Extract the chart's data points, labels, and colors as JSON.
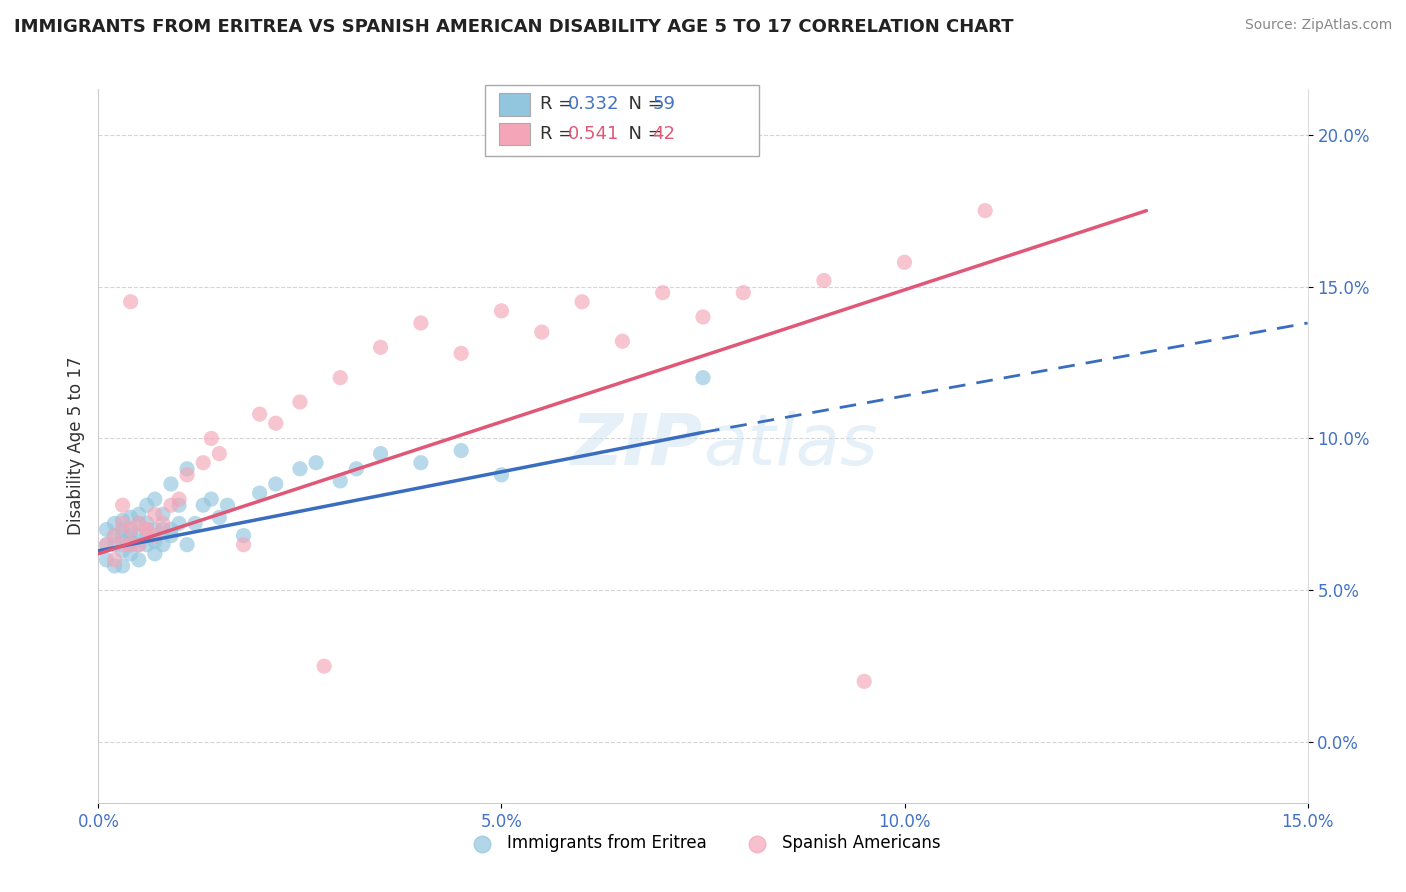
{
  "title": "IMMIGRANTS FROM ERITREA VS SPANISH AMERICAN DISABILITY AGE 5 TO 17 CORRELATION CHART",
  "source": "Source: ZipAtlas.com",
  "ylabel": "Disability Age 5 to 17",
  "xlim": [
    0.0,
    0.15
  ],
  "ylim": [
    -0.02,
    0.215
  ],
  "xticks": [
    0.0,
    0.05,
    0.1,
    0.15
  ],
  "xtick_labels": [
    "0.0%",
    "5.0%",
    "10.0%",
    "15.0%"
  ],
  "yticks": [
    0.0,
    0.05,
    0.1,
    0.15,
    0.2
  ],
  "ytick_labels": [
    "0.0%",
    "5.0%",
    "10.0%",
    "15.0%",
    "20.0%"
  ],
  "blue_R": 0.332,
  "blue_N": 59,
  "pink_R": 0.541,
  "pink_N": 42,
  "blue_color": "#92c5de",
  "pink_color": "#f4a6b8",
  "blue_line_color": "#3a6dbf",
  "pink_line_color": "#e05878",
  "watermark": "ZIPatlas",
  "legend_labels": [
    "Immigrants from Eritrea",
    "Spanish Americans"
  ],
  "blue_scatter_x": [
    0.001,
    0.001,
    0.001,
    0.002,
    0.002,
    0.002,
    0.002,
    0.003,
    0.003,
    0.003,
    0.003,
    0.003,
    0.003,
    0.004,
    0.004,
    0.004,
    0.004,
    0.004,
    0.004,
    0.005,
    0.005,
    0.005,
    0.005,
    0.005,
    0.006,
    0.006,
    0.006,
    0.006,
    0.007,
    0.007,
    0.007,
    0.007,
    0.008,
    0.008,
    0.008,
    0.009,
    0.009,
    0.009,
    0.01,
    0.01,
    0.011,
    0.011,
    0.012,
    0.013,
    0.014,
    0.015,
    0.016,
    0.018,
    0.02,
    0.022,
    0.025,
    0.027,
    0.03,
    0.032,
    0.035,
    0.04,
    0.045,
    0.05,
    0.075
  ],
  "blue_scatter_y": [
    0.065,
    0.07,
    0.06,
    0.068,
    0.072,
    0.065,
    0.058,
    0.07,
    0.066,
    0.063,
    0.068,
    0.073,
    0.058,
    0.068,
    0.074,
    0.062,
    0.066,
    0.07,
    0.065,
    0.068,
    0.072,
    0.065,
    0.06,
    0.075,
    0.068,
    0.072,
    0.065,
    0.078,
    0.07,
    0.066,
    0.062,
    0.08,
    0.07,
    0.075,
    0.065,
    0.07,
    0.068,
    0.085,
    0.072,
    0.078,
    0.065,
    0.09,
    0.072,
    0.078,
    0.08,
    0.074,
    0.078,
    0.068,
    0.082,
    0.085,
    0.09,
    0.092,
    0.086,
    0.09,
    0.095,
    0.092,
    0.096,
    0.088,
    0.12
  ],
  "pink_scatter_x": [
    0.001,
    0.002,
    0.002,
    0.003,
    0.003,
    0.003,
    0.004,
    0.004,
    0.004,
    0.005,
    0.005,
    0.006,
    0.006,
    0.007,
    0.007,
    0.008,
    0.009,
    0.01,
    0.011,
    0.013,
    0.014,
    0.015,
    0.018,
    0.02,
    0.022,
    0.025,
    0.028,
    0.03,
    0.035,
    0.04,
    0.045,
    0.05,
    0.055,
    0.06,
    0.065,
    0.07,
    0.075,
    0.08,
    0.09,
    0.095,
    0.1,
    0.11
  ],
  "pink_scatter_y": [
    0.065,
    0.068,
    0.06,
    0.065,
    0.072,
    0.078,
    0.065,
    0.07,
    0.145,
    0.065,
    0.072,
    0.07,
    0.07,
    0.068,
    0.075,
    0.072,
    0.078,
    0.08,
    0.088,
    0.092,
    0.1,
    0.095,
    0.065,
    0.108,
    0.105,
    0.112,
    0.025,
    0.12,
    0.13,
    0.138,
    0.128,
    0.142,
    0.135,
    0.145,
    0.132,
    0.148,
    0.14,
    0.148,
    0.152,
    0.02,
    0.158,
    0.175
  ],
  "blue_line_x0": 0.0,
  "blue_line_x_solid_end": 0.075,
  "blue_line_x1": 0.15,
  "blue_line_y_at_0": 0.063,
  "blue_line_y_at_075": 0.102,
  "blue_line_y_at_15": 0.138,
  "pink_line_x0": 0.0,
  "pink_line_x1": 0.13,
  "pink_line_y_at_0": 0.062,
  "pink_line_y_at_13": 0.175
}
